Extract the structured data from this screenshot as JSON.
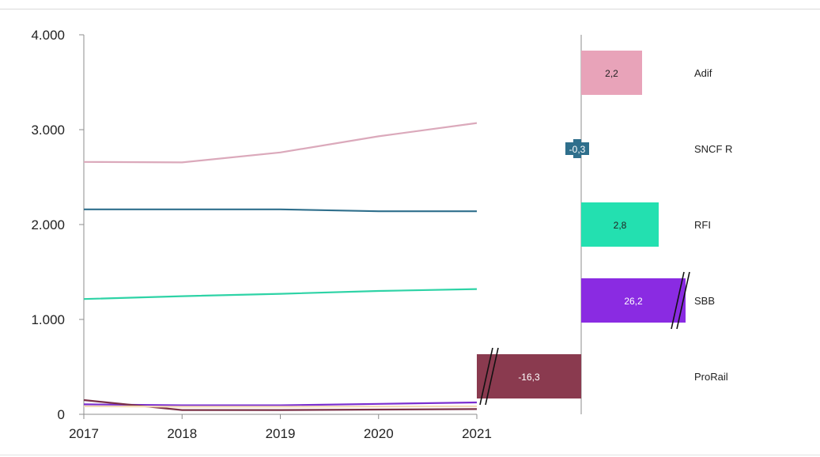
{
  "chart_data": [
    {
      "type": "line",
      "title": "",
      "xlabel": "",
      "ylabel": "",
      "x": [
        "2017",
        "2018",
        "2019",
        "2020",
        "2021"
      ],
      "y_ticks": [
        "0",
        "1.000",
        "2.000",
        "3.000",
        "4.000"
      ],
      "ylim": [
        0,
        4000
      ],
      "grid": false,
      "series": [
        {
          "color": "#dba9bb",
          "values": [
            2660,
            2655,
            2760,
            2930,
            3070
          ]
        },
        {
          "color": "#2f6f8c",
          "values": [
            2160,
            2160,
            2160,
            2140,
            2140
          ]
        },
        {
          "color": "#2ed3a6",
          "values": [
            1215,
            1245,
            1270,
            1300,
            1320
          ]
        },
        {
          "color": "#7b2fd0",
          "values": [
            105,
            95,
            95,
            110,
            125
          ]
        },
        {
          "color": "#7a3047",
          "values": [
            150,
            45,
            45,
            50,
            55
          ]
        },
        {
          "color": "#f3d9b6",
          "values": [
            85,
            80,
            80,
            82,
            85
          ]
        }
      ]
    },
    {
      "type": "bar",
      "orientation": "horizontal",
      "title": "",
      "categories": [
        "Adif",
        "SNCF R",
        "RFI",
        "SBB",
        "ProRail"
      ],
      "values": [
        2.2,
        -0.3,
        2.8,
        26.2,
        -16.3
      ],
      "value_labels": [
        "2,2",
        "-0,3",
        "2,8",
        "26,2",
        "-16,3"
      ],
      "colors": [
        "#e8a3b9",
        "#2f6f8c",
        "#23e0b0",
        "#8a2be2",
        "#8a3a4f"
      ],
      "label_colors": [
        "#222222",
        "#ffffff",
        "#222222",
        "#ffffff",
        "#ffffff"
      ],
      "axis_breaks": [
        false,
        false,
        false,
        true,
        true
      ],
      "grid": false
    }
  ]
}
